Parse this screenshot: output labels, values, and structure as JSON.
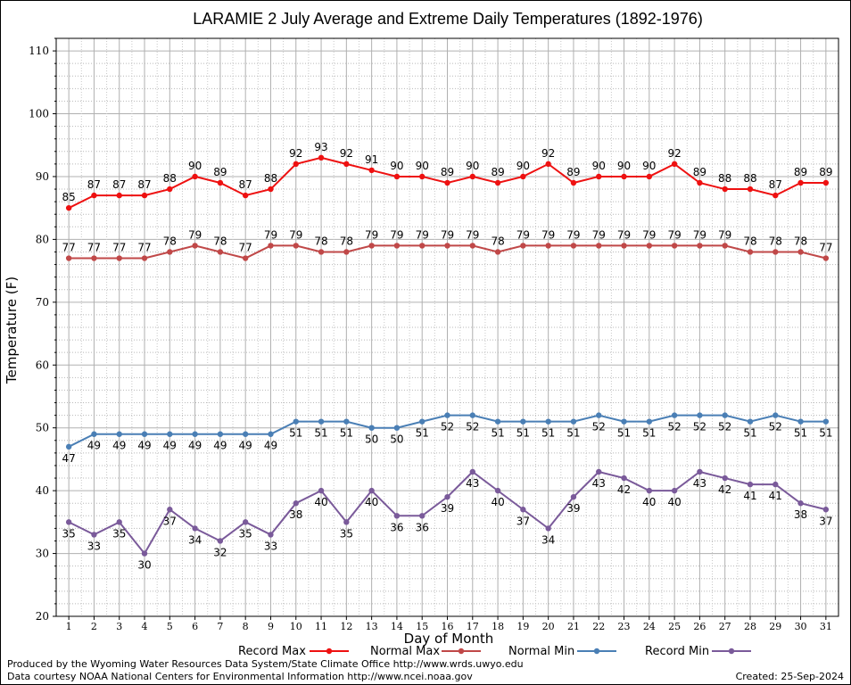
{
  "chart_data": {
    "type": "line",
    "title": "LARAMIE 2 July Average and Extreme Daily Temperatures (1892-1976)",
    "xlabel": "Day of Month",
    "ylabel": "Temperature (F)",
    "ylim": [
      20,
      112
    ],
    "yticks": [
      20,
      30,
      40,
      50,
      60,
      70,
      80,
      90,
      100,
      110
    ],
    "x": [
      1,
      2,
      3,
      4,
      5,
      6,
      7,
      8,
      9,
      10,
      11,
      12,
      13,
      14,
      15,
      16,
      17,
      18,
      19,
      20,
      21,
      22,
      23,
      24,
      25,
      26,
      27,
      28,
      29,
      30,
      31
    ],
    "grid": true,
    "legend_placement": "bottom",
    "series": [
      {
        "name": "Record Max",
        "color": "#ee1111",
        "label_position": "above",
        "values": [
          85,
          87,
          87,
          87,
          88,
          90,
          89,
          87,
          88,
          92,
          93,
          92,
          91,
          90,
          90,
          89,
          90,
          89,
          90,
          92,
          89,
          90,
          90,
          90,
          92,
          89,
          88,
          88,
          87,
          89,
          89
        ]
      },
      {
        "name": "Normal Max",
        "color": "#c04848",
        "label_position": "above",
        "values": [
          77,
          77,
          77,
          77,
          78,
          79,
          78,
          77,
          79,
          79,
          78,
          78,
          79,
          79,
          79,
          79,
          79,
          78,
          79,
          79,
          79,
          79,
          79,
          79,
          79,
          79,
          79,
          78,
          78,
          78,
          77
        ]
      },
      {
        "name": "Normal Min",
        "color": "#4a7fb5",
        "label_position": "below",
        "values": [
          47,
          49,
          49,
          49,
          49,
          49,
          49,
          49,
          49,
          51,
          51,
          51,
          50,
          50,
          51,
          52,
          52,
          51,
          51,
          51,
          51,
          52,
          51,
          51,
          52,
          52,
          52,
          51,
          52,
          51,
          51
        ]
      },
      {
        "name": "Record Min",
        "color": "#7a5a9a",
        "label_position": "below",
        "values": [
          35,
          33,
          35,
          30,
          37,
          34,
          32,
          35,
          33,
          38,
          40,
          35,
          40,
          36,
          36,
          39,
          43,
          40,
          37,
          34,
          39,
          43,
          42,
          40,
          40,
          43,
          42,
          41,
          41,
          38,
          37
        ]
      }
    ]
  },
  "footer": {
    "credit_line1": "Produced by the Wyoming Water Resources Data System/State Climate Office http://www.wrds.uwyo.edu",
    "credit_line2": "Data courtesy NOAA National Centers for Environmental Information http://www.ncei.noaa.gov",
    "created": "Created:  25-Sep-2024"
  }
}
